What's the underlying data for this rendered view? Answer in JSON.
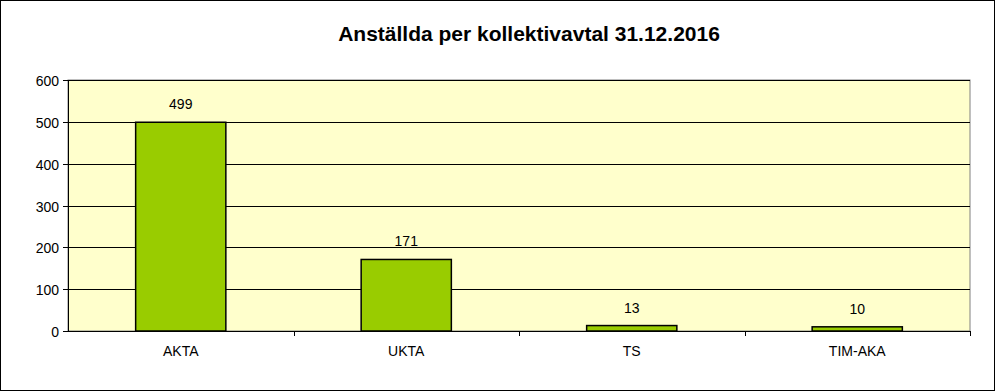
{
  "chart_data": {
    "type": "bar",
    "title": "Anställda per kollektivavtal 31.12.2016",
    "categories": [
      "AKTA",
      "UKTA",
      "TS",
      "TIM-AKA"
    ],
    "values": [
      499,
      171,
      13,
      10
    ],
    "color": "#99cc00",
    "ylim": [
      0,
      600
    ],
    "yticks": [
      0,
      100,
      200,
      300,
      400,
      500,
      600
    ],
    "grid": true,
    "data_labels": true
  }
}
